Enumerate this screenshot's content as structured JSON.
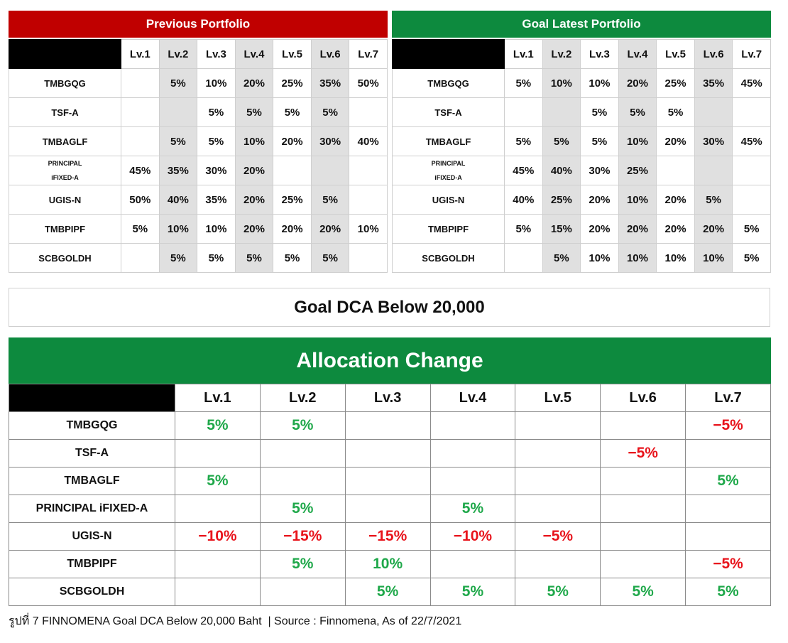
{
  "previous": {
    "title": "Previous Portfolio",
    "columns": [
      "Lv.1",
      "Lv.2",
      "Lv.3",
      "Lv.4",
      "Lv.5",
      "Lv.6",
      "Lv.7"
    ],
    "rows": [
      {
        "label": "TMBGQG",
        "cells": [
          null,
          "5%",
          "10%",
          "20%",
          "25%",
          "35%",
          "50%"
        ]
      },
      {
        "label": "TSF-A",
        "cells": [
          null,
          null,
          "5%",
          "5%",
          "5%",
          "5%",
          null
        ]
      },
      {
        "label": "TMBAGLF",
        "cells": [
          null,
          "5%",
          "5%",
          "10%",
          "20%",
          "30%",
          "40%"
        ]
      },
      {
        "label": "PRINCIPAL iFIXED-A",
        "cells": [
          "45%",
          "35%",
          "30%",
          "20%",
          null,
          null,
          null
        ]
      },
      {
        "label": "UGIS-N",
        "cells": [
          "50%",
          "40%",
          "35%",
          "20%",
          "25%",
          "5%",
          null
        ]
      },
      {
        "label": "TMBPIPF",
        "cells": [
          "5%",
          "10%",
          "10%",
          "20%",
          "20%",
          "20%",
          "10%"
        ]
      },
      {
        "label": "SCBGOLDH",
        "cells": [
          null,
          "5%",
          "5%",
          "5%",
          "5%",
          "5%",
          null
        ]
      }
    ]
  },
  "latest": {
    "title": "Goal Latest Portfolio",
    "columns": [
      "Lv.1",
      "Lv.2",
      "Lv.3",
      "Lv.4",
      "Lv.5",
      "Lv.6",
      "Lv.7"
    ],
    "rows": [
      {
        "label": "TMBGQG",
        "cells": [
          "5%",
          "10%",
          "10%",
          "20%",
          "25%",
          "35%",
          "45%"
        ]
      },
      {
        "label": "TSF-A",
        "cells": [
          null,
          null,
          "5%",
          "5%",
          "5%",
          null,
          null
        ]
      },
      {
        "label": "TMBAGLF",
        "cells": [
          "5%",
          "5%",
          "5%",
          "10%",
          "20%",
          "30%",
          "45%"
        ]
      },
      {
        "label": "PRINCIPAL iFIXED-A",
        "cells": [
          "45%",
          "40%",
          "30%",
          "25%",
          null,
          null,
          null
        ]
      },
      {
        "label": "UGIS-N",
        "cells": [
          "40%",
          "25%",
          "20%",
          "10%",
          "20%",
          "5%",
          null
        ]
      },
      {
        "label": "TMBPIPF",
        "cells": [
          "5%",
          "15%",
          "20%",
          "20%",
          "20%",
          "20%",
          "5%"
        ]
      },
      {
        "label": "SCBGOLDH",
        "cells": [
          null,
          "5%",
          "10%",
          "10%",
          "10%",
          "10%",
          "5%"
        ]
      }
    ]
  },
  "goal_title": "Goal DCA Below 20,000",
  "change": {
    "title": "Allocation Change",
    "columns": [
      "Lv.1",
      "Lv.2",
      "Lv.3",
      "Lv.4",
      "Lv.5",
      "Lv.6",
      "Lv.7"
    ],
    "rows": [
      {
        "label": "TMBGQG",
        "cells": [
          "5%",
          "5%",
          null,
          null,
          null,
          null,
          "−5%"
        ]
      },
      {
        "label": "TSF-A",
        "cells": [
          null,
          null,
          null,
          null,
          null,
          "−5%",
          null
        ]
      },
      {
        "label": "TMBAGLF",
        "cells": [
          "5%",
          null,
          null,
          null,
          null,
          null,
          "5%"
        ]
      },
      {
        "label": "PRINCIPAL iFIXED-A",
        "cells": [
          null,
          "5%",
          null,
          "5%",
          null,
          null,
          null
        ]
      },
      {
        "label": "UGIS-N",
        "cells": [
          "−10%",
          "−15%",
          "−15%",
          "−10%",
          "−5%",
          null,
          null
        ]
      },
      {
        "label": "TMBPIPF",
        "cells": [
          null,
          "5%",
          "10%",
          null,
          null,
          null,
          "−5%"
        ]
      },
      {
        "label": "SCBGOLDH",
        "cells": [
          null,
          null,
          "5%",
          "5%",
          "5%",
          "5%",
          "5%"
        ]
      }
    ]
  },
  "caption": "รูปที่ 7 FINNOMENA Goal DCA Below 20,000 Baht  | Source : Finnomena, As of 22/7/2021"
}
